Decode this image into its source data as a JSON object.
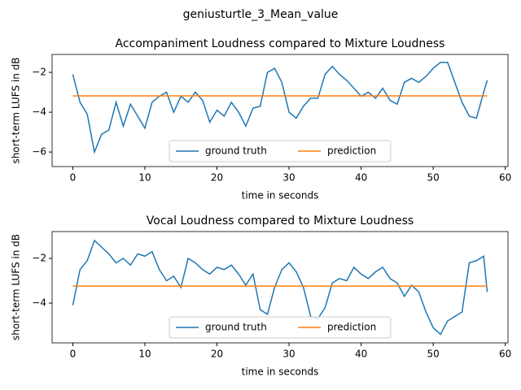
{
  "title": "geniusturtle_3_Mean_value",
  "chart_data": [
    {
      "type": "line",
      "title": "Accompaniment Loudness compared to Mixture Loudness",
      "xlabel": "time in seconds",
      "ylabel": "short-term LUFS in dB",
      "x": [
        0,
        1,
        2,
        3,
        4,
        5,
        6,
        7,
        8,
        9,
        10,
        11,
        12,
        13,
        14,
        15,
        16,
        17,
        18,
        19,
        20,
        21,
        22,
        23,
        24,
        25,
        26,
        27,
        28,
        29,
        30,
        31,
        32,
        33,
        34,
        35,
        36,
        37,
        38,
        39,
        40,
        41,
        42,
        43,
        44,
        45,
        46,
        47,
        48,
        49,
        50,
        51,
        52,
        53,
        54,
        55,
        56,
        57,
        57.5
      ],
      "series": [
        {
          "name": "ground truth",
          "color": "#1f77b4",
          "values": [
            -2.1,
            -3.5,
            -4.1,
            -6.0,
            -5.1,
            -4.9,
            -3.5,
            -4.7,
            -3.6,
            -4.2,
            -4.8,
            -3.5,
            -3.2,
            -3.0,
            -4.0,
            -3.2,
            -3.5,
            -3.0,
            -3.4,
            -4.5,
            -3.9,
            -4.2,
            -3.5,
            -4.0,
            -4.7,
            -3.8,
            -3.7,
            -2.0,
            -1.8,
            -2.5,
            -4.0,
            -4.3,
            -3.7,
            -3.3,
            -3.3,
            -2.1,
            -1.7,
            -2.1,
            -2.4,
            -2.8,
            -3.2,
            -3.0,
            -3.3,
            -2.8,
            -3.4,
            -3.6,
            -2.5,
            -2.3,
            -2.5,
            -2.2,
            -1.8,
            -1.5,
            -1.5,
            -2.5,
            -3.5,
            -4.2,
            -4.3,
            -3.0,
            -2.4
          ]
        },
        {
          "name": "prediction",
          "color": "#ff7f0e",
          "values": [
            -3.18,
            -3.18,
            -3.18,
            -3.18,
            -3.18,
            -3.18,
            -3.18,
            -3.18,
            -3.18,
            -3.18,
            -3.18,
            -3.18,
            -3.18,
            -3.18,
            -3.18,
            -3.18,
            -3.18,
            -3.18,
            -3.18,
            -3.18,
            -3.18,
            -3.18,
            -3.18,
            -3.18,
            -3.18,
            -3.18,
            -3.18,
            -3.18,
            -3.18,
            -3.18,
            -3.18,
            -3.18,
            -3.18,
            -3.18,
            -3.18,
            -3.18,
            -3.18,
            -3.18,
            -3.18,
            -3.18,
            -3.18,
            -3.18,
            -3.18,
            -3.18,
            -3.18,
            -3.18,
            -3.18,
            -3.18,
            -3.18,
            -3.18,
            -3.18,
            -3.18,
            -3.18,
            -3.18,
            -3.18,
            -3.18,
            -3.18,
            -3.18,
            -3.18
          ]
        }
      ],
      "xlim": [
        -2.875,
        60.375
      ],
      "xticks": [
        0,
        10,
        20,
        30,
        40,
        50,
        60
      ],
      "ylim": [
        -6.73,
        -1.1
      ],
      "yticks": [
        {
          "value": -6,
          "label": "−6"
        },
        {
          "value": -4,
          "label": "−4"
        },
        {
          "value": -2,
          "label": "−2"
        }
      ],
      "legend": "lower center"
    },
    {
      "type": "line",
      "title": "Vocal Loudness compared to Mixture Loudness",
      "xlabel": "time in seconds",
      "ylabel": "short-term LUFS in dB",
      "x": [
        0,
        1,
        2,
        3,
        4,
        5,
        6,
        7,
        8,
        9,
        10,
        11,
        12,
        13,
        14,
        15,
        16,
        17,
        18,
        19,
        20,
        21,
        22,
        23,
        24,
        25,
        26,
        27,
        28,
        29,
        30,
        31,
        32,
        33,
        34,
        35,
        36,
        37,
        38,
        39,
        40,
        41,
        42,
        43,
        44,
        45,
        46,
        47,
        48,
        49,
        50,
        51,
        52,
        53,
        54,
        55,
        56,
        57,
        57.5
      ],
      "series": [
        {
          "name": "ground truth",
          "color": "#1f77b4",
          "values": [
            -4.1,
            -2.5,
            -2.1,
            -1.2,
            -1.5,
            -1.8,
            -2.2,
            -2.0,
            -2.3,
            -1.8,
            -1.9,
            -1.7,
            -2.5,
            -3.0,
            -2.8,
            -3.3,
            -2.0,
            -2.2,
            -2.5,
            -2.7,
            -2.4,
            -2.5,
            -2.3,
            -2.7,
            -3.2,
            -2.7,
            -4.3,
            -4.5,
            -3.3,
            -2.5,
            -2.2,
            -2.6,
            -3.3,
            -4.6,
            -4.7,
            -4.2,
            -3.1,
            -2.9,
            -3.0,
            -2.4,
            -2.7,
            -2.9,
            -2.6,
            -2.4,
            -2.9,
            -3.1,
            -3.7,
            -3.2,
            -3.5,
            -4.4,
            -5.1,
            -5.4,
            -4.8,
            -4.6,
            -4.4,
            -2.2,
            -2.1,
            -1.9,
            -3.5
          ]
        },
        {
          "name": "prediction",
          "color": "#ff7f0e",
          "values": [
            -3.24,
            -3.24,
            -3.24,
            -3.24,
            -3.24,
            -3.24,
            -3.24,
            -3.24,
            -3.24,
            -3.24,
            -3.24,
            -3.24,
            -3.24,
            -3.24,
            -3.24,
            -3.24,
            -3.24,
            -3.24,
            -3.24,
            -3.24,
            -3.24,
            -3.24,
            -3.24,
            -3.24,
            -3.24,
            -3.24,
            -3.24,
            -3.24,
            -3.24,
            -3.24,
            -3.24,
            -3.24,
            -3.24,
            -3.24,
            -3.24,
            -3.24,
            -3.24,
            -3.24,
            -3.24,
            -3.24,
            -3.24,
            -3.24,
            -3.24,
            -3.24,
            -3.24,
            -3.24,
            -3.24,
            -3.24,
            -3.24,
            -3.24,
            -3.24,
            -3.24,
            -3.24,
            -3.24,
            -3.24,
            -3.24,
            -3.24,
            -3.24,
            -3.24
          ]
        }
      ],
      "xlim": [
        -2.875,
        60.375
      ],
      "xticks": [
        0,
        10,
        20,
        30,
        40,
        50,
        60
      ],
      "ylim": [
        -5.78,
        -0.8
      ],
      "yticks": [
        {
          "value": -4,
          "label": "−4"
        },
        {
          "value": -2,
          "label": "−2"
        }
      ],
      "legend": "lower center"
    }
  ]
}
